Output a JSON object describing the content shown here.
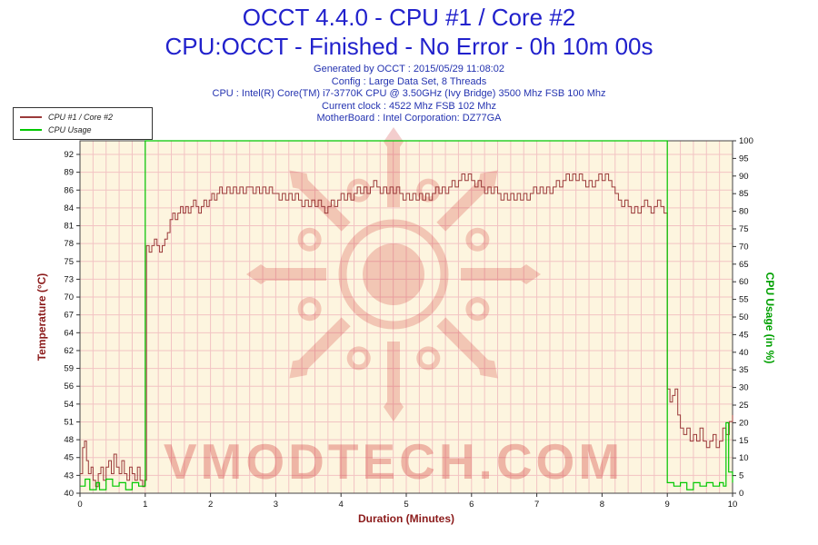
{
  "header": {
    "title_line1": "OCCT 4.4.0 - CPU #1 / Core #2",
    "title_line2": "CPU:OCCT - Finished - No Error - 0h 10m 00s",
    "info_lines": [
      "Generated by OCCT : 2015/05/29 11:08:02",
      "Config : Large Data Set, 8 Threads",
      "CPU : Intel(R) Core(TM) i7-3770K CPU @ 3.50GHz (Ivy Bridge) 3500 Mhz FSB 100 Mhz",
      "Current clock : 4522 Mhz FSB 102 Mhz",
      "MotherBoard : Intel Corporation: DZ77GA"
    ]
  },
  "legend": {
    "items": [
      {
        "label": "CPU #1 / Core #2",
        "color": "#9b3a3a"
      },
      {
        "label": "CPU Usage",
        "color": "#00c800"
      }
    ]
  },
  "watermark": {
    "text": "VMODTECH.COM",
    "color": "#cc2222"
  },
  "chart_data": {
    "type": "line",
    "title": "OCCT 4.4.0 - CPU #1 / Core #2",
    "xlabel": "Duration (Minutes)",
    "ylabel_left": "Temperature (°C)",
    "ylabel_right": "CPU Usage (in %)",
    "x_range": [
      0,
      10
    ],
    "x_ticks": [
      0,
      1,
      2,
      3,
      4,
      5,
      6,
      7,
      8,
      9,
      10
    ],
    "temp_ticks": [
      40,
      43,
      45,
      48,
      51,
      54,
      56,
      59,
      62,
      64,
      67,
      70,
      73,
      75,
      78,
      81,
      84,
      86,
      89,
      92
    ],
    "usage_ticks": [
      0,
      5,
      10,
      15,
      20,
      25,
      30,
      35,
      40,
      45,
      50,
      55,
      60,
      65,
      70,
      75,
      80,
      85,
      90,
      95,
      100
    ],
    "usage_range": [
      0,
      100
    ],
    "grid_x_step": 0.2,
    "grid": true,
    "legend_position": "top-left",
    "colors": {
      "plot_bg": "#fdf5df",
      "grid": "#f2c3c3",
      "border": "#444444",
      "tick_text": "#111111",
      "temp_series": "#9b3a3a",
      "usage_series": "#00c800",
      "title_blue": "#2121cc",
      "axis_left": "#8b1a1a",
      "axis_right": "#00a000"
    },
    "series": [
      {
        "name": "CPU #1 / Core #2",
        "axis": "temp",
        "color": "#9b3a3a",
        "points": [
          [
            0,
            43
          ],
          [
            0.04,
            47
          ],
          [
            0.07,
            48
          ],
          [
            0.1,
            45
          ],
          [
            0.13,
            43
          ],
          [
            0.17,
            44
          ],
          [
            0.2,
            42
          ],
          [
            0.24,
            41
          ],
          [
            0.28,
            43
          ],
          [
            0.32,
            44
          ],
          [
            0.36,
            42
          ],
          [
            0.4,
            44
          ],
          [
            0.44,
            45
          ],
          [
            0.48,
            43
          ],
          [
            0.52,
            46
          ],
          [
            0.56,
            44
          ],
          [
            0.6,
            43
          ],
          [
            0.64,
            45
          ],
          [
            0.68,
            43
          ],
          [
            0.72,
            42
          ],
          [
            0.76,
            44
          ],
          [
            0.8,
            43
          ],
          [
            0.84,
            42
          ],
          [
            0.88,
            44
          ],
          [
            0.92,
            42
          ],
          [
            0.96,
            41
          ],
          [
            0.99,
            42
          ],
          [
            1.02,
            78
          ],
          [
            1.06,
            77
          ],
          [
            1.1,
            78
          ],
          [
            1.14,
            79
          ],
          [
            1.18,
            78
          ],
          [
            1.22,
            77
          ],
          [
            1.26,
            78
          ],
          [
            1.3,
            79
          ],
          [
            1.34,
            80
          ],
          [
            1.38,
            82
          ],
          [
            1.42,
            83
          ],
          [
            1.46,
            82
          ],
          [
            1.5,
            83
          ],
          [
            1.54,
            84
          ],
          [
            1.58,
            83
          ],
          [
            1.62,
            84
          ],
          [
            1.66,
            83
          ],
          [
            1.7,
            84
          ],
          [
            1.74,
            85
          ],
          [
            1.78,
            84
          ],
          [
            1.82,
            83
          ],
          [
            1.86,
            84
          ],
          [
            1.9,
            85
          ],
          [
            1.94,
            84
          ],
          [
            1.98,
            85
          ],
          [
            2.02,
            86
          ],
          [
            2.06,
            85
          ],
          [
            2.1,
            86
          ],
          [
            2.14,
            87
          ],
          [
            2.18,
            86
          ],
          [
            2.25,
            87
          ],
          [
            2.3,
            86
          ],
          [
            2.35,
            87
          ],
          [
            2.4,
            86
          ],
          [
            2.45,
            87
          ],
          [
            2.5,
            86
          ],
          [
            2.55,
            87
          ],
          [
            2.6,
            87
          ],
          [
            2.65,
            86
          ],
          [
            2.7,
            87
          ],
          [
            2.75,
            86
          ],
          [
            2.8,
            87
          ],
          [
            2.85,
            86
          ],
          [
            2.9,
            87
          ],
          [
            2.95,
            86
          ],
          [
            3.0,
            86
          ],
          [
            3.05,
            85
          ],
          [
            3.1,
            86
          ],
          [
            3.15,
            85
          ],
          [
            3.2,
            86
          ],
          [
            3.25,
            85
          ],
          [
            3.3,
            86
          ],
          [
            3.35,
            85
          ],
          [
            3.4,
            84
          ],
          [
            3.45,
            85
          ],
          [
            3.5,
            84
          ],
          [
            3.55,
            85
          ],
          [
            3.6,
            84
          ],
          [
            3.65,
            85
          ],
          [
            3.7,
            84
          ],
          [
            3.75,
            83
          ],
          [
            3.8,
            84
          ],
          [
            3.85,
            85
          ],
          [
            3.9,
            84
          ],
          [
            3.95,
            85
          ],
          [
            4.0,
            86
          ],
          [
            4.05,
            85
          ],
          [
            4.1,
            86
          ],
          [
            4.15,
            85
          ],
          [
            4.2,
            86
          ],
          [
            4.25,
            87
          ],
          [
            4.3,
            86
          ],
          [
            4.35,
            87
          ],
          [
            4.4,
            86
          ],
          [
            4.45,
            87
          ],
          [
            4.5,
            88
          ],
          [
            4.55,
            87
          ],
          [
            4.6,
            86
          ],
          [
            4.65,
            87
          ],
          [
            4.7,
            86
          ],
          [
            4.75,
            87
          ],
          [
            4.8,
            86
          ],
          [
            4.85,
            87
          ],
          [
            4.9,
            86
          ],
          [
            4.95,
            85
          ],
          [
            5.0,
            86
          ],
          [
            5.05,
            85
          ],
          [
            5.1,
            86
          ],
          [
            5.15,
            85
          ],
          [
            5.2,
            86
          ],
          [
            5.25,
            85
          ],
          [
            5.3,
            86
          ],
          [
            5.35,
            85
          ],
          [
            5.4,
            86
          ],
          [
            5.45,
            87
          ],
          [
            5.5,
            86
          ],
          [
            5.55,
            87
          ],
          [
            5.6,
            86
          ],
          [
            5.65,
            87
          ],
          [
            5.7,
            88
          ],
          [
            5.75,
            87
          ],
          [
            5.8,
            88
          ],
          [
            5.85,
            89
          ],
          [
            5.9,
            88
          ],
          [
            5.95,
            89
          ],
          [
            6.0,
            88
          ],
          [
            6.05,
            87
          ],
          [
            6.1,
            88
          ],
          [
            6.15,
            87
          ],
          [
            6.2,
            86
          ],
          [
            6.25,
            87
          ],
          [
            6.3,
            86
          ],
          [
            6.35,
            87
          ],
          [
            6.4,
            86
          ],
          [
            6.45,
            85
          ],
          [
            6.5,
            86
          ],
          [
            6.55,
            85
          ],
          [
            6.6,
            86
          ],
          [
            6.65,
            85
          ],
          [
            6.7,
            86
          ],
          [
            6.75,
            85
          ],
          [
            6.8,
            86
          ],
          [
            6.85,
            85
          ],
          [
            6.9,
            86
          ],
          [
            6.95,
            87
          ],
          [
            7.0,
            86
          ],
          [
            7.05,
            87
          ],
          [
            7.1,
            86
          ],
          [
            7.15,
            87
          ],
          [
            7.2,
            86
          ],
          [
            7.25,
            87
          ],
          [
            7.3,
            88
          ],
          [
            7.35,
            87
          ],
          [
            7.4,
            88
          ],
          [
            7.45,
            89
          ],
          [
            7.5,
            88
          ],
          [
            7.55,
            89
          ],
          [
            7.6,
            88
          ],
          [
            7.65,
            89
          ],
          [
            7.7,
            88
          ],
          [
            7.75,
            87
          ],
          [
            7.8,
            88
          ],
          [
            7.85,
            87
          ],
          [
            7.9,
            88
          ],
          [
            7.95,
            89
          ],
          [
            8.0,
            88
          ],
          [
            8.05,
            89
          ],
          [
            8.1,
            88
          ],
          [
            8.15,
            87
          ],
          [
            8.2,
            86
          ],
          [
            8.25,
            85
          ],
          [
            8.3,
            84
          ],
          [
            8.35,
            85
          ],
          [
            8.4,
            84
          ],
          [
            8.45,
            83
          ],
          [
            8.5,
            84
          ],
          [
            8.55,
            83
          ],
          [
            8.6,
            84
          ],
          [
            8.65,
            85
          ],
          [
            8.7,
            84
          ],
          [
            8.75,
            83
          ],
          [
            8.8,
            84
          ],
          [
            8.85,
            85
          ],
          [
            8.9,
            84
          ],
          [
            8.95,
            83
          ],
          [
            9.0,
            56
          ],
          [
            9.04,
            54
          ],
          [
            9.08,
            55
          ],
          [
            9.12,
            56
          ],
          [
            9.16,
            52
          ],
          [
            9.2,
            50
          ],
          [
            9.25,
            49
          ],
          [
            9.3,
            50
          ],
          [
            9.35,
            48
          ],
          [
            9.4,
            49
          ],
          [
            9.45,
            48
          ],
          [
            9.5,
            50
          ],
          [
            9.55,
            48
          ],
          [
            9.6,
            47
          ],
          [
            9.65,
            48
          ],
          [
            9.7,
            49
          ],
          [
            9.75,
            47
          ],
          [
            9.8,
            48
          ],
          [
            9.85,
            50
          ],
          [
            9.9,
            49
          ],
          [
            9.95,
            51
          ],
          [
            10,
            52
          ]
        ]
      },
      {
        "name": "CPU Usage",
        "axis": "usage",
        "color": "#00c800",
        "points": [
          [
            0,
            2
          ],
          [
            0.08,
            4
          ],
          [
            0.15,
            1
          ],
          [
            0.25,
            3
          ],
          [
            0.3,
            1
          ],
          [
            0.4,
            4
          ],
          [
            0.5,
            2
          ],
          [
            0.6,
            3
          ],
          [
            0.7,
            1
          ],
          [
            0.8,
            3
          ],
          [
            0.9,
            2
          ],
          [
            0.98,
            2
          ],
          [
            1.0,
            100
          ],
          [
            8.98,
            100
          ],
          [
            9.0,
            3
          ],
          [
            9.1,
            2
          ],
          [
            9.2,
            3
          ],
          [
            9.3,
            1
          ],
          [
            9.4,
            3
          ],
          [
            9.5,
            2
          ],
          [
            9.6,
            3
          ],
          [
            9.7,
            2
          ],
          [
            9.8,
            3
          ],
          [
            9.86,
            2
          ],
          [
            9.9,
            20
          ],
          [
            9.94,
            6
          ],
          [
            10,
            3
          ]
        ]
      }
    ]
  }
}
